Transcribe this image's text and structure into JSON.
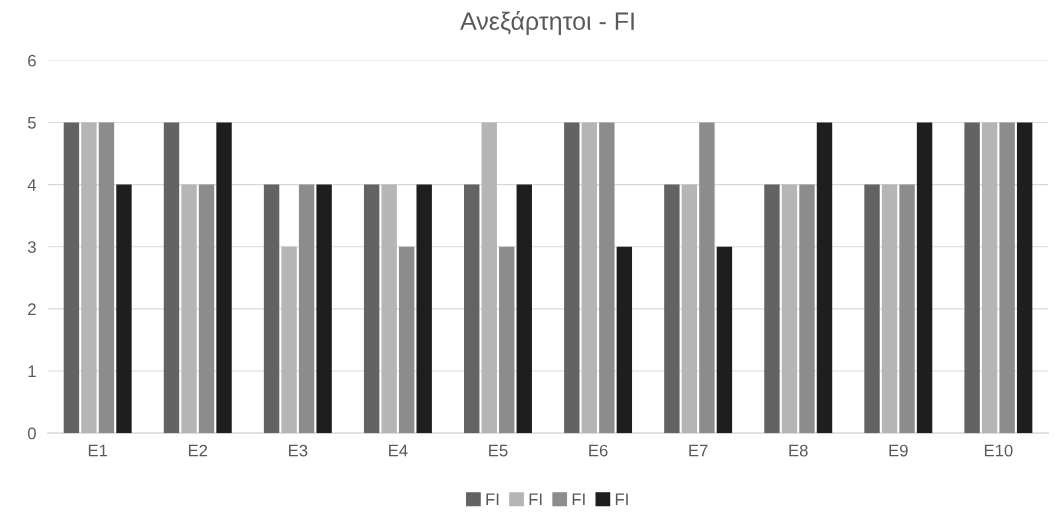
{
  "chart_data": {
    "type": "bar",
    "title": "Ανεξάρτητοι - FI",
    "categories": [
      "E1",
      "E2",
      "E3",
      "E4",
      "E5",
      "E6",
      "E7",
      "E8",
      "E9",
      "E10"
    ],
    "series": [
      {
        "name": "FI",
        "color": "#636363",
        "values": [
          5,
          5,
          4,
          4,
          4,
          5,
          4,
          4,
          4,
          5
        ]
      },
      {
        "name": "FI",
        "color": "#b5b5b5",
        "values": [
          5,
          4,
          3,
          4,
          5,
          5,
          4,
          4,
          4,
          5
        ]
      },
      {
        "name": "FI",
        "color": "#8c8c8c",
        "values": [
          5,
          4,
          4,
          3,
          3,
          5,
          5,
          4,
          4,
          5
        ]
      },
      {
        "name": "FI",
        "color": "#1e1e1e",
        "values": [
          4,
          5,
          4,
          4,
          4,
          3,
          3,
          5,
          5,
          5
        ]
      }
    ],
    "ylim": [
      0,
      6
    ],
    "yticks": [
      0,
      1,
      2,
      3,
      4,
      5,
      6
    ],
    "grid": "y",
    "legend": "bottom"
  }
}
